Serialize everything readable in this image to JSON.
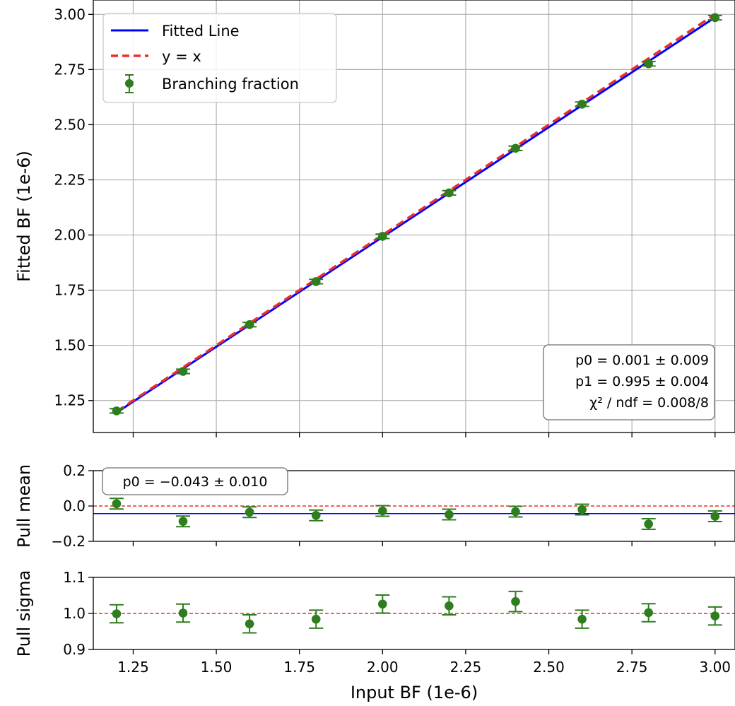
{
  "chart_data": [
    {
      "id": "main",
      "type": "scatter",
      "title": "",
      "xlabel": "",
      "ylabel": "Fitted BF (1e-6)",
      "xlim": [
        1.13,
        3.06
      ],
      "ylim": [
        1.105,
        3.065
      ],
      "xticks": [
        1.25,
        1.5,
        1.75,
        2.0,
        2.25,
        2.5,
        2.75,
        3.0
      ],
      "yticks": [
        1.25,
        1.5,
        1.75,
        2.0,
        2.25,
        2.5,
        2.75,
        3.0
      ],
      "ytick_labels": [
        "1.25",
        "1.50",
        "1.75",
        "2.00",
        "2.25",
        "2.50",
        "2.75",
        "3.00"
      ],
      "grid": true,
      "legend_position": "top-left",
      "legend": [
        {
          "label": "Fitted Line",
          "style": "solid",
          "color": "#0000ff"
        },
        {
          "label": "y = x",
          "style": "dashed",
          "color": "#e8302a"
        },
        {
          "label": "Branching fraction",
          "style": "errorbar",
          "color": "#2e7d1e"
        }
      ],
      "series": [
        {
          "name": "Branching fraction",
          "x": [
            1.2,
            1.4,
            1.6,
            1.8,
            2.0,
            2.2,
            2.4,
            2.6,
            2.8,
            3.0
          ],
          "y": [
            1.203,
            1.382,
            1.594,
            1.789,
            1.994,
            2.191,
            2.393,
            2.593,
            2.776,
            2.985
          ],
          "yerr": [
            0.01,
            0.01,
            0.01,
            0.01,
            0.01,
            0.01,
            0.01,
            0.01,
            0.01,
            0.01
          ]
        }
      ],
      "fit_line": {
        "p0": 0.001,
        "p1": 0.995,
        "x_range": [
          1.2,
          3.0
        ]
      },
      "reference_line": {
        "slope": 1.0,
        "intercept": 0.0,
        "x_range": [
          1.2,
          3.0
        ]
      },
      "annotation": [
        "p0 = 0.001 ± 0.009",
        "p1 = 0.995 ± 0.004",
        "χ² / ndf = 0.008/8"
      ]
    },
    {
      "id": "pull-mean",
      "type": "scatter",
      "ylabel": "Pull mean",
      "ylim": [
        -0.2,
        0.2
      ],
      "yticks": [
        -0.2,
        0.0,
        0.2
      ],
      "ytick_labels": [
        "−0.2",
        "0.0",
        "0.2"
      ],
      "x": [
        1.2,
        1.4,
        1.6,
        1.8,
        2.0,
        2.2,
        2.4,
        2.6,
        2.8,
        3.0
      ],
      "y": [
        0.013,
        -0.087,
        -0.035,
        -0.053,
        -0.028,
        -0.048,
        -0.032,
        -0.02,
        -0.102,
        -0.058
      ],
      "yerr": [
        0.03,
        0.03,
        0.03,
        0.03,
        0.03,
        0.03,
        0.03,
        0.03,
        0.03,
        0.03
      ],
      "fit_value": -0.043,
      "reference_value": 0.0,
      "annotation": "p0 = −0.043 ± 0.010"
    },
    {
      "id": "pull-sigma",
      "type": "scatter",
      "xlabel": "Input BF (1e-6)",
      "ylabel": "Pull sigma",
      "ylim": [
        0.9,
        1.1
      ],
      "yticks": [
        0.9,
        1.0,
        1.1
      ],
      "ytick_labels": [
        "0.9",
        "1.0",
        "1.1"
      ],
      "xtick_labels": [
        "1.25",
        "1.50",
        "1.75",
        "2.00",
        "2.25",
        "2.50",
        "2.75",
        "3.00"
      ],
      "x": [
        1.2,
        1.4,
        1.6,
        1.8,
        2.0,
        2.2,
        2.4,
        2.6,
        2.8,
        3.0
      ],
      "y": [
        0.999,
        1.001,
        0.971,
        0.984,
        1.026,
        1.021,
        1.033,
        0.984,
        1.002,
        0.993
      ],
      "yerr": [
        0.025,
        0.025,
        0.025,
        0.025,
        0.025,
        0.025,
        0.028,
        0.025,
        0.025,
        0.025
      ],
      "reference_value": 1.0
    }
  ],
  "colors": {
    "points": "#2e7d1e",
    "fit": "#0000ff",
    "reference": "#e8302a",
    "grid": "#b0b0b0"
  }
}
